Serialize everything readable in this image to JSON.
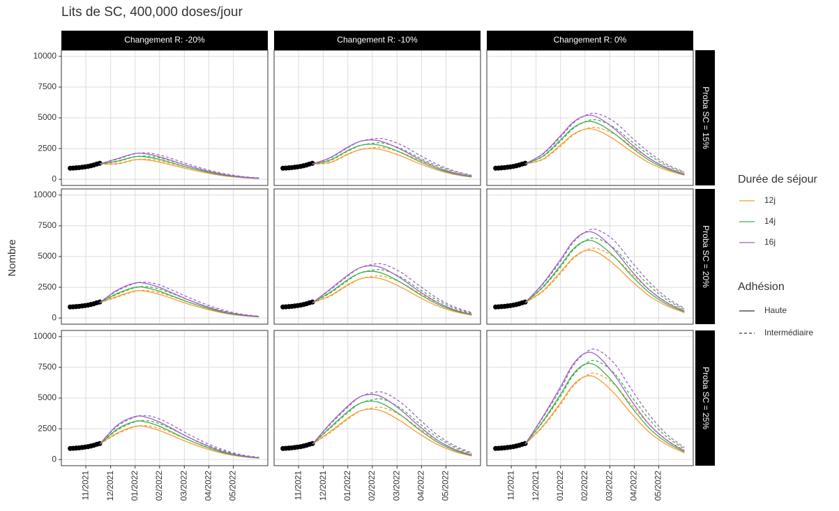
{
  "chart_data": {
    "type": "line",
    "title": "Lits de SC, 400,000 doses/jour",
    "ylabel": "Nombre",
    "columns": [
      "Changement R: -20%",
      "Changement R: -10%",
      "Changement R: 0%"
    ],
    "rows": [
      "Proba SC = 15%",
      "Proba SC = 20%",
      "Proba SC = 25%"
    ],
    "xlim": [
      2021.75,
      2022.45
    ],
    "xticks": [
      {
        "value": 2021.833,
        "label": "11/2021"
      },
      {
        "value": 2021.917,
        "label": "12/2021"
      },
      {
        "value": 2022.0,
        "label": "01/2022"
      },
      {
        "value": 2022.083,
        "label": "02/2022"
      },
      {
        "value": 2022.167,
        "label": "03/2022"
      },
      {
        "value": 2022.25,
        "label": "04/2022"
      },
      {
        "value": 2022.333,
        "label": "05/2022"
      }
    ],
    "ylim": [
      -500,
      10500
    ],
    "yticks": [
      0,
      2500,
      5000,
      7500,
      10000
    ],
    "grid": true,
    "observed": {
      "color": "#000000",
      "x": [
        2021.78,
        2021.79,
        2021.8,
        2021.81,
        2021.82,
        2021.83,
        2021.84,
        2021.85,
        2021.86,
        2021.87,
        2021.88
      ],
      "values": [
        900,
        910,
        930,
        950,
        980,
        1010,
        1050,
        1100,
        1160,
        1240,
        1300
      ]
    },
    "legend_color_title": "Durée de séjour",
    "durations": [
      {
        "name": "12j",
        "color": "#f39c34"
      },
      {
        "name": "14j",
        "color": "#3fae49"
      },
      {
        "name": "16j",
        "color": "#a061c8"
      }
    ],
    "legend_style_title": "Adhésion",
    "adhesions": [
      {
        "name": "Haute",
        "dash": "solid"
      },
      {
        "name": "Intermédiaire",
        "dash": "dashed"
      }
    ],
    "x": [
      2021.88,
      2021.94,
      2022.0,
      2022.04,
      2022.08,
      2022.12,
      2022.18,
      2022.24,
      2022.3,
      2022.36,
      2022.42
    ],
    "panels": [
      [
        [
          [
            [
              1250,
              1280,
              1600,
              1570,
              1410,
              1180,
              830,
              530,
              290,
              140,
              60
            ],
            [
              1250,
              1240,
              1580,
              1630,
              1520,
              1300,
              950,
              620,
              360,
              180,
              80
            ]
          ],
          [
            [
              1250,
              1480,
              1850,
              1810,
              1630,
              1370,
              960,
              610,
              330,
              170,
              70
            ],
            [
              1250,
              1440,
              1830,
              1890,
              1760,
              1510,
              1100,
              720,
              420,
              210,
              90
            ]
          ],
          [
            [
              1250,
              1680,
              2100,
              2060,
              1850,
              1550,
              1090,
              690,
              380,
              190,
              80
            ],
            [
              1250,
              1630,
              2080,
              2140,
              1990,
              1710,
              1240,
              810,
              470,
              240,
              110
            ]
          ]
        ],
        [
          [
            [
              1250,
              1380,
              2050,
              2400,
              2500,
              2380,
              1900,
              1300,
              780,
              400,
              180
            ],
            [
              1250,
              1340,
              2010,
              2400,
              2550,
              2580,
              2190,
              1570,
              980,
              540,
              260
            ]
          ],
          [
            [
              1250,
              1570,
              2340,
              2740,
              2850,
              2710,
              2170,
              1480,
              880,
              460,
              200
            ],
            [
              1250,
              1530,
              2290,
              2730,
              2910,
              2940,
              2500,
              1790,
              1120,
              620,
              290
            ]
          ],
          [
            [
              1250,
              1760,
              2620,
              3070,
              3200,
              3040,
              2430,
              1660,
              990,
              510,
              220
            ],
            [
              1250,
              1720,
              2570,
              3070,
              3270,
              3300,
              2810,
              2010,
              1250,
              690,
              330
            ]
          ]
        ],
        [
          [
            [
              1250,
              1640,
              2790,
              3610,
              4060,
              4020,
              3280,
              2260,
              1350,
              740,
              330
            ],
            [
              1250,
              1600,
              2700,
              3540,
              4050,
              4220,
              3710,
              2700,
              1730,
              970,
              460
            ]
          ],
          [
            [
              1250,
              1880,
              3200,
              4140,
              4650,
              4610,
              3760,
              2590,
              1550,
              850,
              380
            ],
            [
              1250,
              1840,
              3100,
              4070,
              4650,
              4840,
              4260,
              3100,
              1980,
              1110,
              530
            ]
          ],
          [
            [
              1250,
              2080,
              3540,
              4580,
              5150,
              5100,
              4160,
              2860,
              1720,
              940,
              420
            ],
            [
              1250,
              2040,
              3430,
              4500,
              5150,
              5360,
              4720,
              3430,
              2200,
              1230,
              590
            ]
          ]
        ]
      ],
      [
        [
          [
            [
              1250,
              1760,
              2200,
              2160,
              1940,
              1630,
              1140,
              730,
              400,
              200,
              90
            ],
            [
              1250,
              1700,
              2170,
              2240,
              2080,
              1790,
              1300,
              850,
              490,
              250,
              110
            ]
          ],
          [
            [
              1250,
              2000,
              2500,
              2450,
              2200,
              1850,
              1300,
              830,
              450,
              230,
              100
            ],
            [
              1250,
              1940,
              2470,
              2550,
              2370,
              2040,
              1480,
              970,
              560,
              280,
              130
            ]
          ],
          [
            [
              1250,
              2280,
              2850,
              2790,
              2510,
              2110,
              1480,
              940,
              510,
              260,
              110
            ],
            [
              1250,
              2210,
              2820,
              2910,
              2710,
              2330,
              1690,
              1110,
              640,
              320,
              150
            ]
          ]
        ],
        [
          [
            [
              1250,
              1820,
              2710,
              3170,
              3300,
              3140,
              2510,
              1720,
              1020,
              530,
              230
            ],
            [
              1250,
              1770,
              2650,
              3160,
              3370,
              3400,
              2890,
              2070,
              1290,
              710,
              340
            ]
          ],
          [
            [
              1250,
              2090,
              3120,
              3650,
              3800,
              3610,
              2890,
              1980,
              1180,
              610,
              270
            ],
            [
              1250,
              2030,
              3050,
              3640,
              3870,
              3910,
              3320,
              2390,
              1490,
              820,
              390
            ]
          ],
          [
            [
              1250,
              2340,
              3490,
              4080,
              4250,
              4040,
              3230,
              2210,
              1320,
              680,
              300
            ],
            [
              1250,
              2280,
              3420,
              4070,
              4340,
              4380,
              3720,
              2670,
              1660,
              920,
              440
            ]
          ]
        ],
        [
          [
            [
              1250,
              2200,
              3740,
              4840,
              5450,
              5390,
              4400,
              3030,
              1820,
              990,
              440
            ],
            [
              1250,
              2150,
              3630,
              4760,
              5440,
              5670,
              4990,
              3630,
              2320,
              1300,
              620
            ]
          ],
          [
            [
              1250,
              2520,
              4280,
              5540,
              6240,
              6170,
              5040,
              3470,
              2080,
              1130,
              500
            ],
            [
              1250,
              2470,
              4150,
              5450,
              6230,
              6490,
              5710,
              4150,
              2660,
              1490,
              710
            ]
          ],
          [
            [
              1250,
              2800,
              4760,
              6160,
              6930,
              6860,
              5600,
              3850,
              2310,
              1260,
              560
            ],
            [
              1250,
              2740,
              4610,
              6060,
              6920,
              7210,
              6340,
              4610,
              2960,
              1660,
              790
            ]
          ]
        ]
      ],
      [
        [
          [
            [
              1250,
              2160,
              2700,
              2650,
              2380,
              2000,
              1400,
              890,
              490,
              240,
              110
            ],
            [
              1250,
              2090,
              2670,
              2750,
              2560,
              2200,
              1600,
              1050,
              610,
              300,
              140
            ]
          ],
          [
            [
              1250,
              2480,
              3100,
              3040,
              2730,
              2290,
              1610,
              1020,
              560,
              280,
              120
            ],
            [
              1250,
              2400,
              3070,
              3160,
              2940,
              2530,
              1830,
              1200,
              700,
              350,
              160
            ]
          ],
          [
            [
              1250,
              2800,
              3500,
              3430,
              3080,
              2590,
              1820,
              1160,
              630,
              320,
              140
            ],
            [
              1250,
              2710,
              3460,
              3570,
              3320,
              2860,
              2070,
              1360,
              790,
              390,
              180
            ]
          ]
        ],
        [
          [
            [
              1250,
              2260,
              3360,
              3940,
              4100,
              3900,
              3120,
              2130,
              1270,
              660,
              290
            ],
            [
              1250,
              2190,
              3290,
              3920,
              4180,
              4220,
              3590,
              2570,
              1600,
              890,
              420
            ]
          ],
          [
            [
              1250,
              2610,
              3900,
              4560,
              4750,
              4510,
              3610,
              2470,
              1470,
              760,
              330
            ],
            [
              1250,
              2540,
              3810,
              4550,
              4840,
              4890,
              4160,
              2980,
              1860,
              1030,
              490
            ]
          ],
          [
            [
              1250,
              2920,
              4350,
              5090,
              5300,
              5040,
              4030,
              2760,
              1640,
              850,
              370
            ],
            [
              1250,
              2840,
              4260,
              5080,
              5410,
              5460,
              4640,
              3330,
              2070,
              1150,
              550
            ]
          ]
        ],
        [
          [
            [
              1250,
              2720,
              4620,
              5980,
              6730,
              6660,
              5440,
              3740,
              2240,
              1220,
              540
            ],
            [
              1250,
              2660,
              4480,
              5880,
              6720,
              7000,
              6160,
              4480,
              2870,
              1610,
              770
            ]
          ],
          [
            [
              1250,
              3120,
              5300,
              6860,
              7720,
              7640,
              6240,
              4290,
              2570,
              1400,
              620
            ],
            [
              1250,
              3050,
              5140,
              6750,
              7710,
              8030,
              7070,
              5140,
              3290,
              1850,
              880
            ]
          ],
          [
            [
              1250,
              3480,
              5920,
              7660,
              8610,
              8530,
              6960,
              4790,
              2870,
              1570,
              700
            ],
            [
              1250,
              3400,
              5730,
              7530,
              8600,
              8960,
              7880,
              5730,
              3670,
              2060,
              990
            ]
          ]
        ]
      ]
    ]
  }
}
